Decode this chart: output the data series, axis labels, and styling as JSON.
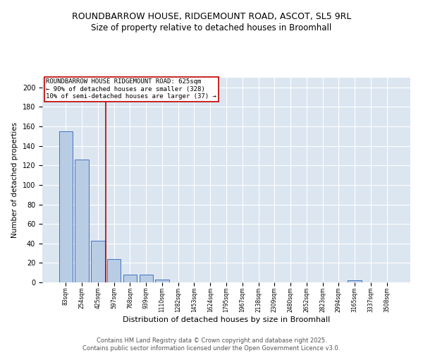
{
  "title1": "ROUNDBARROW HOUSE, RIDGEMOUNT ROAD, ASCOT, SL5 9RL",
  "title2": "Size of property relative to detached houses in Broomhall",
  "xlabel": "Distribution of detached houses by size in Broomhall",
  "ylabel": "Number of detached properties",
  "bar_labels": [
    "83sqm",
    "254sqm",
    "425sqm",
    "597sqm",
    "768sqm",
    "939sqm",
    "1110sqm",
    "1282sqm",
    "1453sqm",
    "1624sqm",
    "1795sqm",
    "1967sqm",
    "2138sqm",
    "2309sqm",
    "2480sqm",
    "2652sqm",
    "2823sqm",
    "2994sqm",
    "3165sqm",
    "3337sqm",
    "3508sqm"
  ],
  "bar_values": [
    155,
    126,
    43,
    24,
    8,
    8,
    3,
    0,
    0,
    0,
    0,
    0,
    0,
    0,
    0,
    0,
    0,
    0,
    2,
    0,
    0
  ],
  "bar_color": "#b8cce4",
  "bar_edge_color": "#4472c4",
  "vline_color": "#c00000",
  "annotation_text": "ROUNDBARROW HOUSE RIDGEMOUNT ROAD: 625sqm\n← 90% of detached houses are smaller (328)\n10% of semi-detached houses are larger (37) →",
  "annotation_box_color": "#c00000",
  "ylim": [
    0,
    210
  ],
  "yticks": [
    0,
    20,
    40,
    60,
    80,
    100,
    120,
    140,
    160,
    180,
    200
  ],
  "footer": "Contains HM Land Registry data © Crown copyright and database right 2025.\nContains public sector information licensed under the Open Government Licence v3.0.",
  "bg_color": "#dce6f1",
  "title_fontsize": 9,
  "subtitle_fontsize": 8.5,
  "annotation_fontsize": 6.5,
  "footer_fontsize": 6,
  "ylabel_fontsize": 7.5,
  "xlabel_fontsize": 8
}
